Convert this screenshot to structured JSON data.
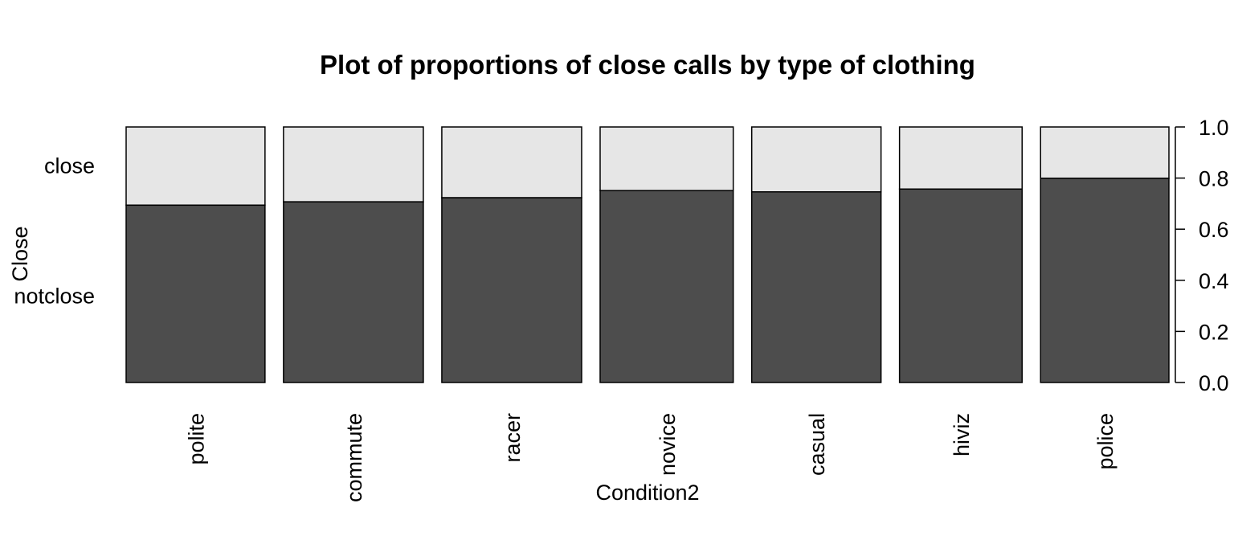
{
  "chart_data": {
    "type": "bar",
    "subtype": "spinogram",
    "title": "Plot of proportions of close calls by type of clothing",
    "xlabel": "Condition2",
    "ylabel": "Close",
    "categories": [
      "polite",
      "commute",
      "racer",
      "novice",
      "casual",
      "hiviz",
      "police"
    ],
    "width_share": [
      0.145,
      0.146,
      0.146,
      0.139,
      0.135,
      0.128,
      0.134
    ],
    "series": [
      {
        "name": "notclose",
        "color": "#4d4d4d",
        "values": [
          0.694,
          0.707,
          0.723,
          0.751,
          0.746,
          0.757,
          0.799
        ]
      },
      {
        "name": "close",
        "color": "#e6e6e6",
        "values": [
          0.306,
          0.293,
          0.277,
          0.249,
          0.254,
          0.243,
          0.201
        ]
      }
    ],
    "left_axis_labels": [
      "notclose",
      "close"
    ],
    "yticks": [
      "0.0",
      "0.2",
      "0.4",
      "0.6",
      "0.8",
      "1.0"
    ],
    "ylim": [
      0,
      1
    ],
    "grid": false,
    "legend": "none"
  }
}
